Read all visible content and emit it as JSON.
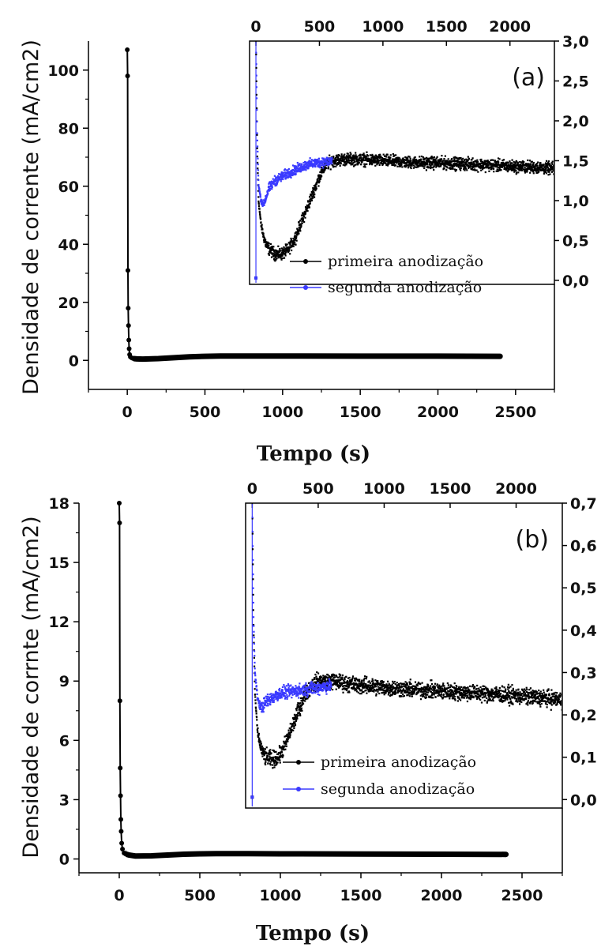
{
  "chart_data": [
    {
      "type": "scatter",
      "panel_label": "(a)",
      "xlabel": "Tempo (s)",
      "ylabel": "Densidade de corrente (mA/cm2)",
      "xlim": [
        -250,
        2750
      ],
      "ylim": [
        -10,
        110
      ],
      "xticks": [
        "0",
        "500",
        "1000",
        "1500",
        "2000",
        "2500"
      ],
      "xtick_values": [
        0,
        500,
        1000,
        1500,
        2000,
        2500
      ],
      "yticks": [
        "0",
        "20",
        "40",
        "60",
        "80",
        "100"
      ],
      "ytick_values": [
        0,
        20,
        40,
        60,
        80,
        100
      ],
      "series": [
        {
          "x": [
            0,
            2,
            4,
            6,
            8,
            10,
            12,
            15,
            20,
            30,
            40,
            60,
            100,
            200,
            300,
            400,
            500,
            600,
            800,
            1000,
            1500,
            2000,
            2400
          ],
          "y": [
            107,
            98,
            31,
            18,
            12,
            7,
            4,
            2,
            1.2,
            0.8,
            0.6,
            0.5,
            0.45,
            0.6,
            0.9,
            1.2,
            1.4,
            1.5,
            1.5,
            1.5,
            1.45,
            1.45,
            1.4
          ]
        }
      ],
      "inset": {
        "xticks": [
          "0",
          "500",
          "1000",
          "1500",
          "2000"
        ],
        "xtick_values": [
          0,
          500,
          1000,
          1500,
          2000
        ],
        "xlim": [
          -50,
          2350
        ],
        "yticks": [
          "0,0",
          "0,5",
          "1,0",
          "1,5",
          "2,0",
          "2,5",
          "3,0"
        ],
        "ytick_values": [
          0,
          0.5,
          1,
          1.5,
          2,
          2.5,
          3
        ],
        "ylim": [
          -0.05,
          3.0
        ],
        "series": [
          {
            "name": "primeira anodização",
            "color": "#000000",
            "noise": 0.11,
            "x": [
              0,
              10,
              20,
              40,
              60,
              80,
              100,
              150,
              200,
              250,
              300,
              350,
              400,
              450,
              500,
              550,
              600,
              700,
              800,
              1000,
              1200,
              1500,
              1800,
              2000,
              2200,
              2350
            ],
            "y": [
              3.0,
              1.6,
              1.0,
              0.7,
              0.55,
              0.45,
              0.4,
              0.33,
              0.33,
              0.38,
              0.5,
              0.7,
              0.9,
              1.1,
              1.3,
              1.45,
              1.5,
              1.52,
              1.52,
              1.5,
              1.48,
              1.47,
              1.45,
              1.43,
              1.42,
              1.4
            ]
          },
          {
            "name": "segunda anodização",
            "color": "#3a3aff",
            "noise": 0.09,
            "x": [
              0,
              10,
              20,
              40,
              60,
              80,
              100,
              150,
              200,
              300,
              400,
              500,
              600
            ],
            "y": [
              3.0,
              1.8,
              1.2,
              1.0,
              0.95,
              1.05,
              1.15,
              1.25,
              1.3,
              1.38,
              1.45,
              1.48,
              1.5
            ]
          }
        ]
      }
    },
    {
      "type": "scatter",
      "panel_label": "(b)",
      "xlabel": "Tempo (s)",
      "ylabel": "Densidade de corrnte (mA/cm2)",
      "xlim": [
        -250,
        2750
      ],
      "ylim": [
        -0.7,
        18
      ],
      "xticks": [
        "0",
        "500",
        "1000",
        "1500",
        "2000",
        "2500"
      ],
      "xtick_values": [
        0,
        500,
        1000,
        1500,
        2000,
        2500
      ],
      "yticks": [
        "0",
        "3",
        "6",
        "9",
        "12",
        "15",
        "18"
      ],
      "ytick_values": [
        0,
        3,
        6,
        9,
        12,
        15,
        18
      ],
      "series": [
        {
          "x": [
            0,
            2,
            4,
            6,
            8,
            10,
            12,
            15,
            20,
            30,
            40,
            60,
            100,
            200,
            300,
            400,
            500,
            600,
            800,
            1000,
            1500,
            2000,
            2400
          ],
          "y": [
            18,
            17,
            8,
            4.6,
            3.2,
            2,
            1.4,
            0.8,
            0.5,
            0.3,
            0.25,
            0.2,
            0.15,
            0.16,
            0.2,
            0.24,
            0.26,
            0.27,
            0.27,
            0.26,
            0.25,
            0.24,
            0.23
          ]
        }
      ],
      "inset": {
        "xticks": [
          "0",
          "500",
          "1000",
          "1500",
          "2000"
        ],
        "xtick_values": [
          0,
          500,
          1000,
          1500,
          2000
        ],
        "xlim": [
          -50,
          2350
        ],
        "yticks": [
          "0,0",
          "0,1",
          "0,2",
          "0,3",
          "0,4",
          "0,5",
          "0,6",
          "0,7"
        ],
        "ytick_values": [
          0,
          0.1,
          0.2,
          0.3,
          0.4,
          0.5,
          0.6,
          0.7
        ],
        "ylim": [
          -0.02,
          0.7
        ],
        "series": [
          {
            "name": "primeira anodização",
            "color": "#000000",
            "noise": 0.028,
            "x": [
              0,
              10,
              20,
              40,
              60,
              80,
              100,
              150,
              200,
              250,
              300,
              350,
              400,
              450,
              500,
              600,
              700,
              800,
              1000,
              1200,
              1500,
              1800,
              2000,
              2200,
              2350
            ],
            "y": [
              0.7,
              0.4,
              0.25,
              0.16,
              0.13,
              0.11,
              0.1,
              0.095,
              0.1,
              0.13,
              0.17,
              0.21,
              0.25,
              0.27,
              0.28,
              0.28,
              0.275,
              0.27,
              0.265,
              0.26,
              0.255,
              0.25,
              0.245,
              0.24,
              0.235
            ]
          },
          {
            "name": "segunda anodização",
            "color": "#3a3aff",
            "noise": 0.022,
            "x": [
              0,
              10,
              20,
              40,
              60,
              80,
              100,
              150,
              200,
              300,
              400,
              500,
              600
            ],
            "y": [
              0.7,
              0.42,
              0.3,
              0.24,
              0.22,
              0.22,
              0.23,
              0.24,
              0.25,
              0.255,
              0.26,
              0.265,
              0.27
            ]
          }
        ]
      }
    }
  ]
}
